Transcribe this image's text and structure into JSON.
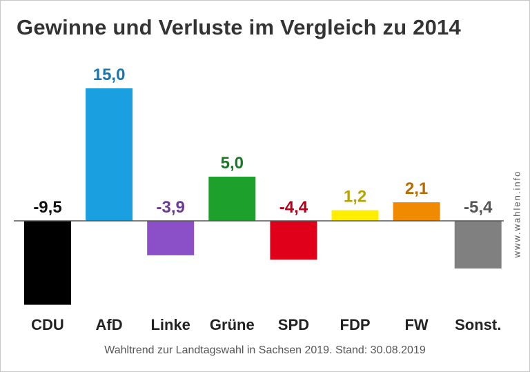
{
  "chart_data": {
    "type": "bar",
    "title": "Gewinne und Verluste im Vergleich zu 2014",
    "categories": [
      "CDU",
      "AfD",
      "Linke",
      "Grüne",
      "SPD",
      "FDP",
      "FW",
      "Sonst."
    ],
    "values": [
      -9.5,
      15.0,
      -3.9,
      5.0,
      -4.4,
      1.2,
      2.1,
      -5.4
    ],
    "value_labels": [
      "-9,5",
      "15,0",
      "-3,9",
      "5,0",
      "-4,4",
      "1,2",
      "2,1",
      "-5,4"
    ],
    "bar_colors": [
      "#000000",
      "#1a9fe0",
      "#8b4fc7",
      "#1ea02d",
      "#e0001a",
      "#ffee00",
      "#f08a00",
      "#808080"
    ],
    "label_colors": [
      "#111111",
      "#1776b0",
      "#6b3a98",
      "#177a24",
      "#b5001a",
      "#b8a400",
      "#b86a00",
      "#555555"
    ],
    "xlabel": "",
    "ylabel": "",
    "ylim": [
      -9.5,
      15.0
    ],
    "grid": false,
    "legend": "none"
  },
  "footer_text": "Wahltrend zur Landtagswahl in Sachsen 2019. Stand: 30.08.2019",
  "watermark": "www.wahlen.info"
}
